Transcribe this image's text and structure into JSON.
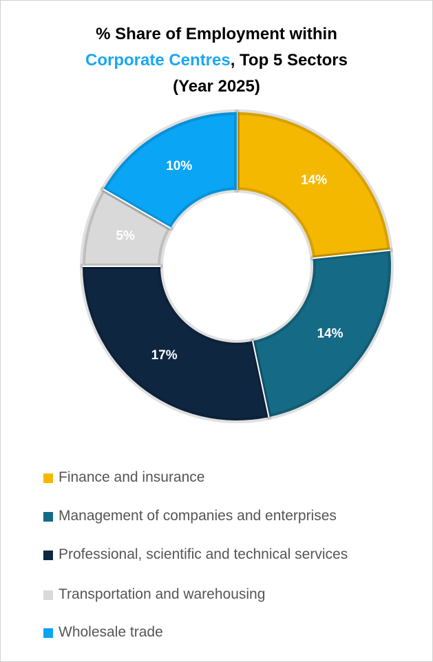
{
  "chart_data": {
    "type": "donut",
    "title": {
      "line1": "% Share of Employment within",
      "highlight": "Corporate Centres",
      "line2_rest": ", Top 5 Sectors",
      "line3": "(Year 2025)",
      "highlight_color": "#1aa7f2"
    },
    "categories": [
      "Finance and insurance",
      "Management of companies and enterprises",
      "Professional, scientific and technical services",
      "Transportation and warehousing",
      "Wholesale trade"
    ],
    "values": [
      14,
      14,
      17,
      5,
      10
    ],
    "value_labels": [
      "14%",
      "14%",
      "17%",
      "5%",
      "10%"
    ],
    "colors": [
      "#f5b800",
      "#156a85",
      "#0f2640",
      "#d9d9d9",
      "#0aa5f5"
    ],
    "label_colors": [
      "#ffffff",
      "#ffffff",
      "#ffffff",
      "#ffffff",
      "#ffffff"
    ],
    "legend": "bottom"
  }
}
